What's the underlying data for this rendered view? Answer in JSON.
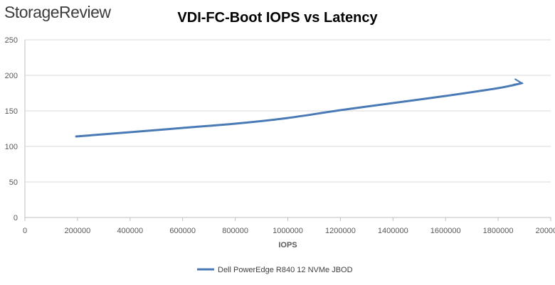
{
  "brand": "StorageReview",
  "chart_data": {
    "type": "line",
    "title": "VDI-FC-Boot IOPS vs Latency",
    "xlabel": "IOPS",
    "ylabel": "",
    "xlim": [
      0,
      2000000
    ],
    "ylim": [
      0,
      250
    ],
    "xticks": [
      0,
      200000,
      400000,
      600000,
      800000,
      1000000,
      1200000,
      1400000,
      1600000,
      1800000,
      2000000
    ],
    "yticks": [
      0,
      50,
      100,
      150,
      200,
      250
    ],
    "grid": "horizontal",
    "legend_position": "bottom",
    "colors": {
      "series": "#4a7ab5",
      "grid": "#d9d9d9",
      "axis": "#bfbfbf"
    },
    "series": [
      {
        "name": "Dell PowerEdge R840 12 NVMe JBOD",
        "x": [
          195000,
          400000,
          600000,
          800000,
          1000000,
          1200000,
          1400000,
          1600000,
          1800000,
          1890000
        ],
        "y": [
          114,
          120,
          126,
          132,
          140,
          151,
          161,
          171,
          182,
          189
        ]
      }
    ]
  }
}
